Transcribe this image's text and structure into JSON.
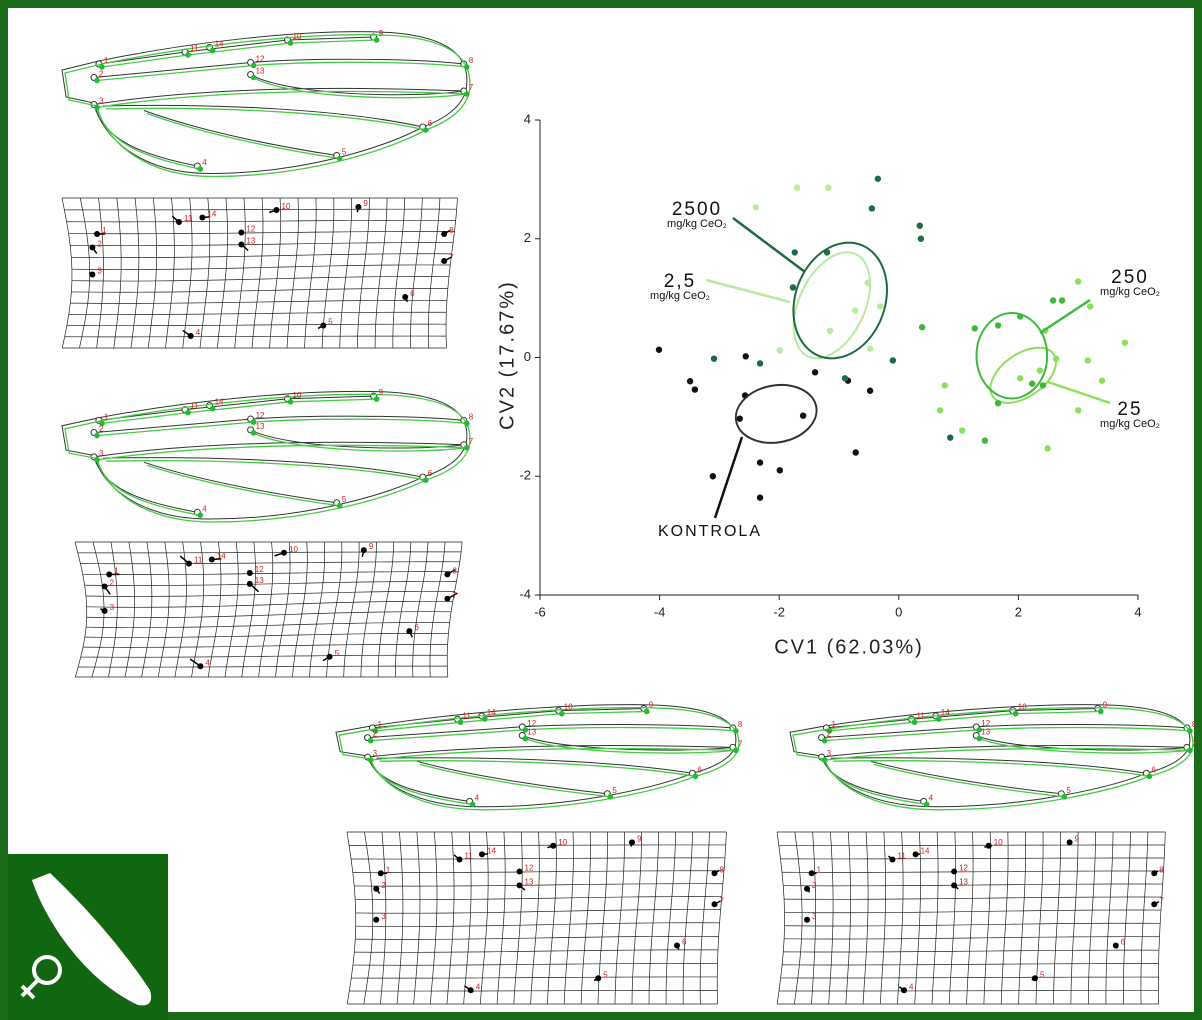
{
  "chart_data": {
    "type": "scatter",
    "xlabel": "CV1 (62.03%)",
    "ylabel": "CV2 (17.67%)",
    "xlim": [
      -6,
      4
    ],
    "xticks": [
      -6,
      -4,
      -2,
      0,
      2,
      4
    ],
    "ylim": [
      -4,
      4
    ],
    "yticks": [
      -4,
      -2,
      0,
      2,
      4
    ],
    "series": [
      {
        "name": "KONTROLA",
        "color": "#111111",
        "x": [
          -4.01,
          -3.49,
          -3.41,
          -2.56,
          -2.57,
          -2.66,
          -1.6,
          -1.4,
          -3.11,
          -2.32,
          -1.99,
          -2.32,
          -0.72,
          -0.85,
          -0.48
        ],
        "y": [
          0.13,
          -0.4,
          -0.54,
          0.02,
          -0.64,
          -1.03,
          -0.98,
          -0.25,
          -2.0,
          -1.77,
          -1.9,
          -2.36,
          -1.6,
          -0.39,
          -0.56
        ],
        "ellipse": {
          "cx": -2.05,
          "cy": -0.95,
          "rx": 0.68,
          "ry": 0.48,
          "angle": -10
        }
      },
      {
        "name": "2,5",
        "unit_label": "mg/kg CeO₂",
        "color": "#b8eaa0",
        "x": [
          -1.7,
          -1.18,
          -2.39,
          -1.15,
          -0.73,
          -0.31,
          -0.48,
          -1.99,
          -0.52
        ],
        "y": [
          2.86,
          2.86,
          2.53,
          0.45,
          0.79,
          0.86,
          0.15,
          0.12,
          1.26
        ],
        "ellipse": {
          "cx": -1.12,
          "cy": 0.88,
          "rx": 0.55,
          "ry": 0.95,
          "angle": 25
        }
      },
      {
        "name": "25",
        "unit_label": "mg/kg CeO₂",
        "color": "#8be05a",
        "x": [
          3.0,
          3.2,
          2.45,
          2.63,
          3.16,
          2.36,
          2.03,
          3.4,
          0.77,
          0.69,
          1.06,
          2.49,
          3.0,
          3.78
        ],
        "y": [
          1.28,
          0.86,
          0.45,
          -0.02,
          -0.05,
          -0.22,
          -0.35,
          -0.39,
          -0.47,
          -0.89,
          -1.23,
          -1.53,
          -0.89,
          0.25
        ],
        "ellipse": {
          "cx": 2.08,
          "cy": -0.3,
          "rx": 0.62,
          "ry": 0.36,
          "angle": -35
        }
      },
      {
        "name": "250",
        "unit_label": "mg/kg CeO₂",
        "color": "#3db83d",
        "x": [
          2.58,
          2.73,
          2.03,
          1.66,
          1.27,
          2.41,
          2.23,
          1.66,
          1.44,
          0.39
        ],
        "y": [
          0.96,
          0.96,
          0.69,
          0.54,
          0.49,
          -0.47,
          -0.44,
          -0.77,
          -1.4,
          0.51
        ],
        "ellipse": {
          "cx": 1.89,
          "cy": 0.03,
          "rx": 0.59,
          "ry": 0.72,
          "angle": 0
        }
      },
      {
        "name": "2500",
        "unit_label": "mg/kg CeO₂",
        "color": "#1e6a42",
        "x": [
          -0.35,
          -0.45,
          0.35,
          0.37,
          -1.74,
          -1.2,
          -1.77,
          -2.32,
          -3.09,
          -0.9,
          0.86,
          -0.1
        ],
        "y": [
          3.01,
          2.51,
          2.22,
          2.0,
          1.77,
          1.77,
          1.18,
          -0.1,
          -0.02,
          -0.35,
          -1.35,
          -0.05
        ],
        "ellipse": {
          "cx": -0.98,
          "cy": 0.96,
          "rx": 0.75,
          "ry": 1.0,
          "angle": 20
        }
      }
    ]
  },
  "wing_landmarks": [
    "1",
    "2",
    "3",
    "4",
    "5",
    "6",
    "7",
    "8",
    "9",
    "10",
    "11",
    "12",
    "13",
    "14"
  ]
}
